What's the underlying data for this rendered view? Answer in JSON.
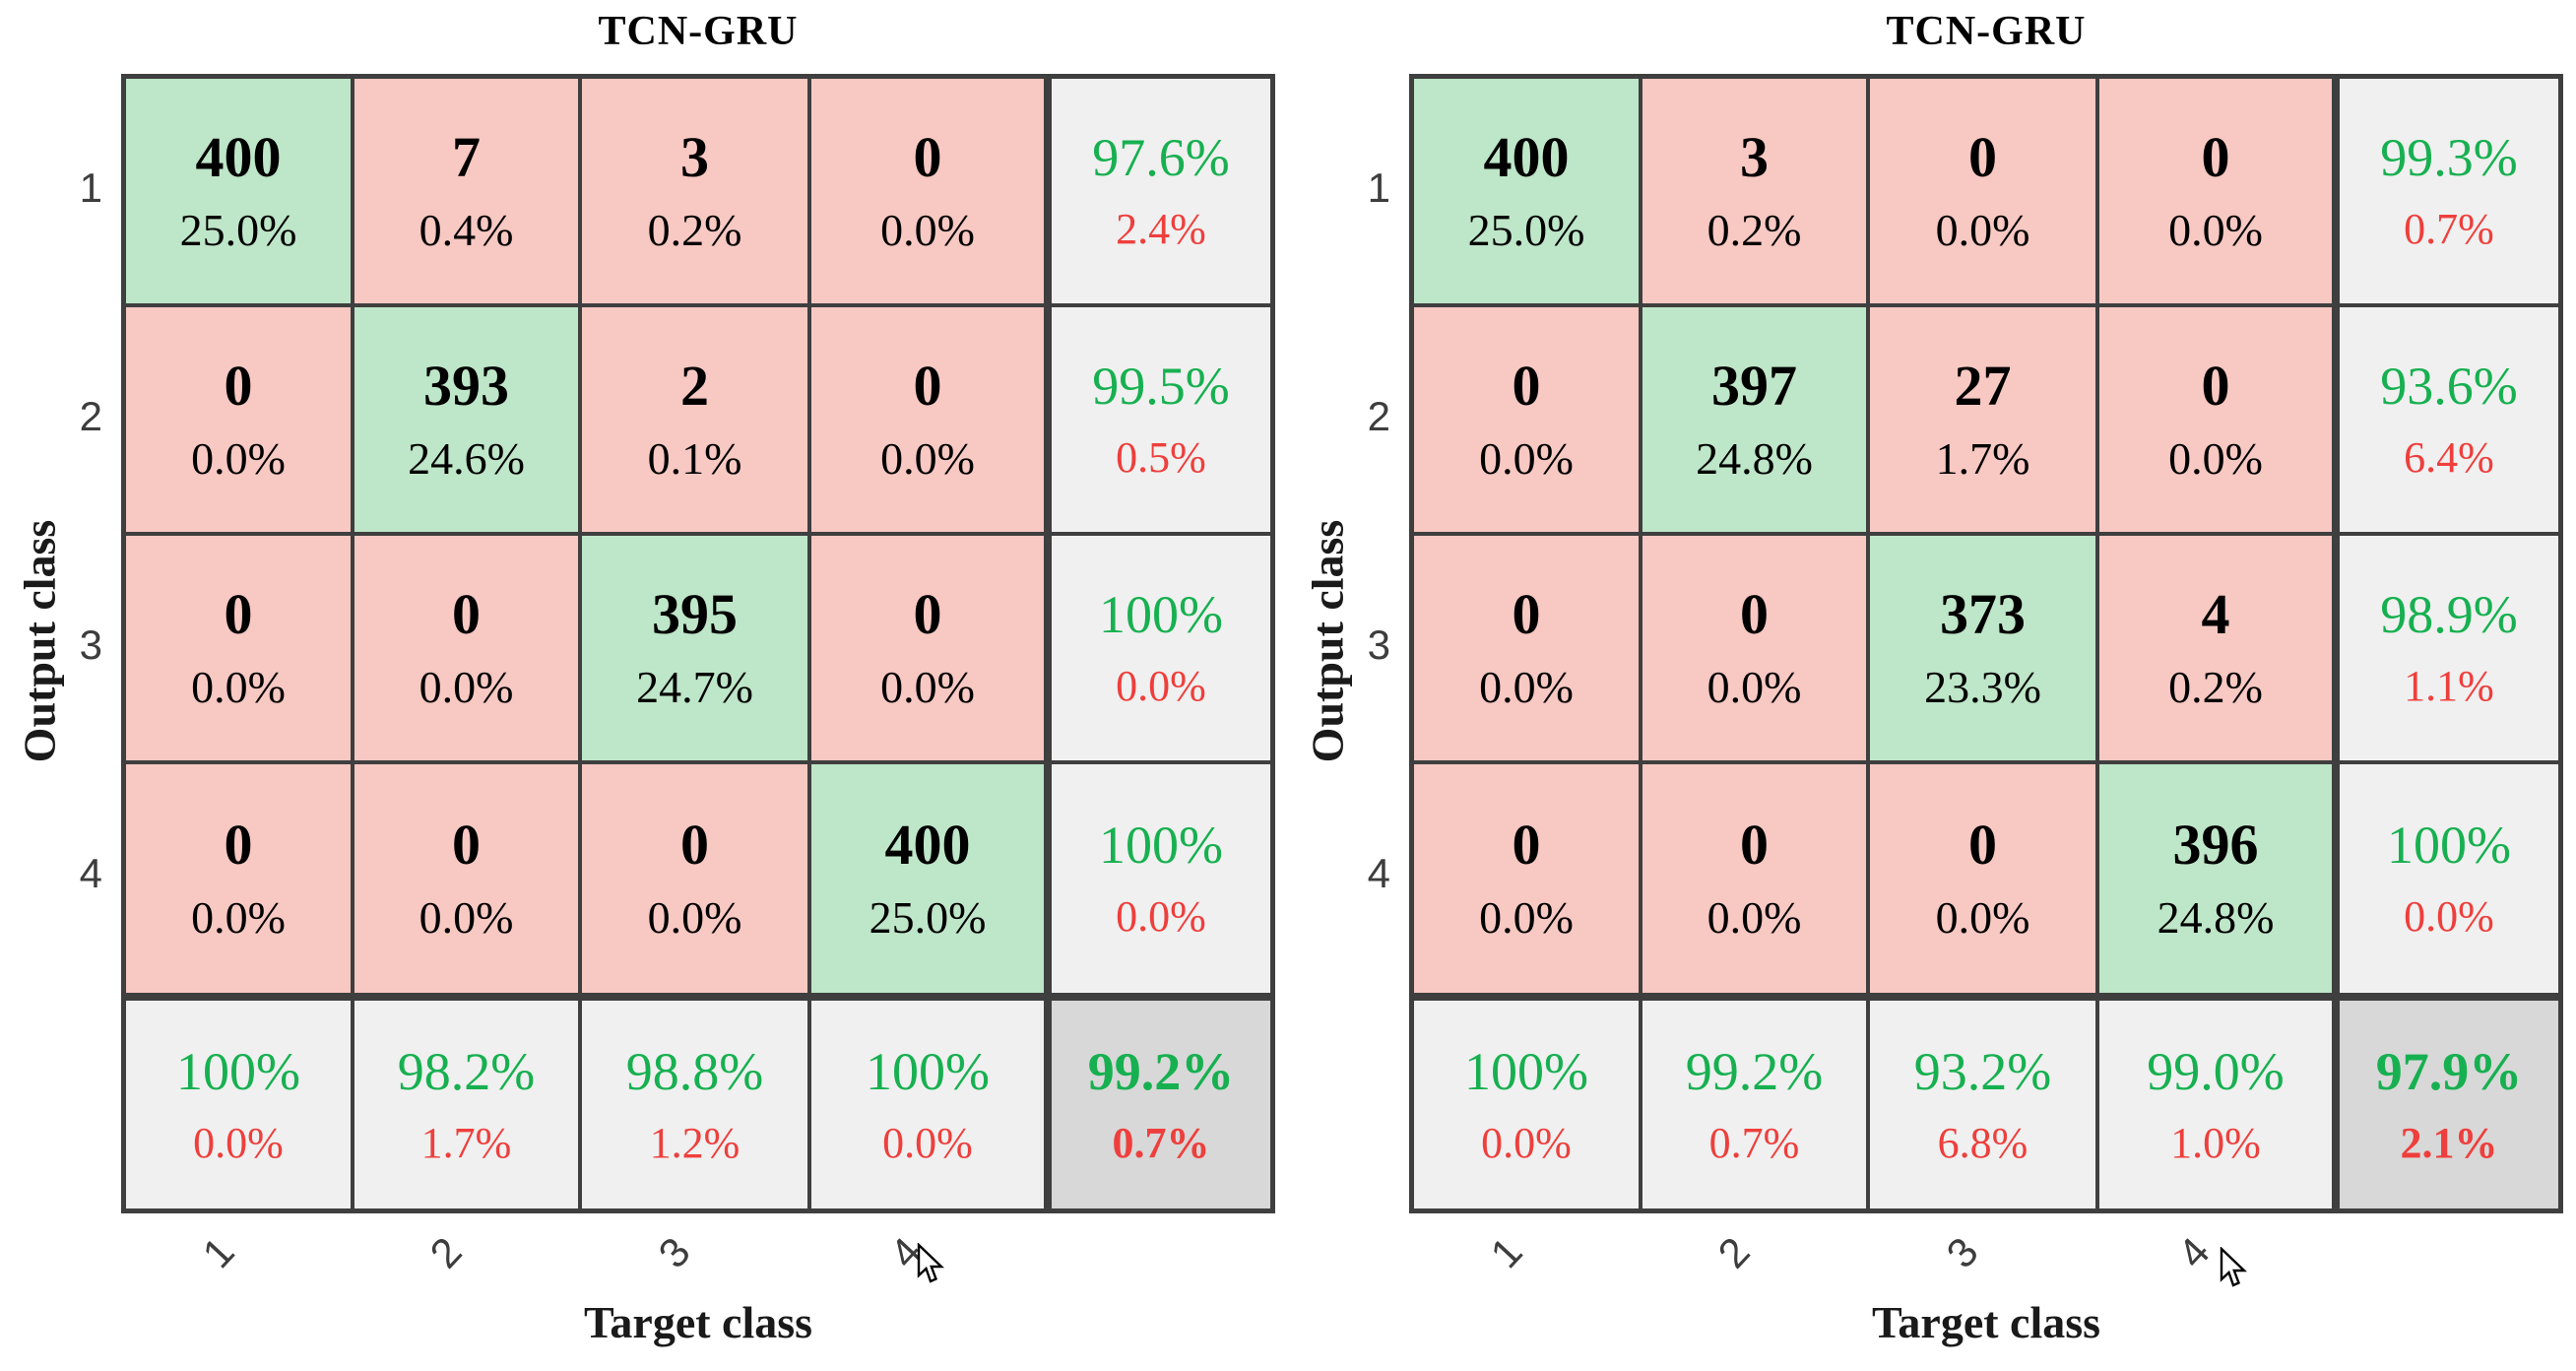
{
  "colors": {
    "border": "#3f3f3f",
    "diagonal_cell_green": "#bee6c8",
    "off_diagonal_pink": "#f8c8c2",
    "summary_cell_gray": "#f0f0f0",
    "overall_cell_gray": "#d8d8d8",
    "success_text_green": "#17b050",
    "error_text_red": "#ee3f3c",
    "tick_label_gray": "#3d3d3d"
  },
  "panels": [
    {
      "title": "TCN-GRU",
      "x_axis_label": "Target class",
      "y_axis_label": "Output class",
      "row_labels": [
        "1",
        "2",
        "3",
        "4"
      ],
      "col_labels": [
        "1",
        "2",
        "3",
        "4"
      ],
      "rows": [
        [
          {
            "count": "400",
            "pct": "25.0%"
          },
          {
            "count": "7",
            "pct": "0.4%"
          },
          {
            "count": "3",
            "pct": "0.2%"
          },
          {
            "count": "0",
            "pct": "0.0%"
          }
        ],
        [
          {
            "count": "0",
            "pct": "0.0%"
          },
          {
            "count": "393",
            "pct": "24.6%"
          },
          {
            "count": "2",
            "pct": "0.1%"
          },
          {
            "count": "0",
            "pct": "0.0%"
          }
        ],
        [
          {
            "count": "0",
            "pct": "0.0%"
          },
          {
            "count": "0",
            "pct": "0.0%"
          },
          {
            "count": "395",
            "pct": "24.7%"
          },
          {
            "count": "0",
            "pct": "0.0%"
          }
        ],
        [
          {
            "count": "0",
            "pct": "0.0%"
          },
          {
            "count": "0",
            "pct": "0.0%"
          },
          {
            "count": "0",
            "pct": "0.0%"
          },
          {
            "count": "400",
            "pct": "25.0%"
          }
        ]
      ],
      "row_summary": [
        {
          "green": "97.6%",
          "red": "2.4%"
        },
        {
          "green": "99.5%",
          "red": "0.5%"
        },
        {
          "green": "100%",
          "red": "0.0%"
        },
        {
          "green": "100%",
          "red": "0.0%"
        }
      ],
      "col_summary": [
        {
          "green": "100%",
          "red": "0.0%"
        },
        {
          "green": "98.2%",
          "red": "1.7%"
        },
        {
          "green": "98.8%",
          "red": "1.2%"
        },
        {
          "green": "100%",
          "red": "0.0%"
        }
      ],
      "overall": {
        "green": "99.2%",
        "red": "0.7%"
      }
    },
    {
      "title": "TCN-GRU",
      "x_axis_label": "Target class",
      "y_axis_label": "Output class",
      "row_labels": [
        "1",
        "2",
        "3",
        "4"
      ],
      "col_labels": [
        "1",
        "2",
        "3",
        "4"
      ],
      "rows": [
        [
          {
            "count": "400",
            "pct": "25.0%"
          },
          {
            "count": "3",
            "pct": "0.2%"
          },
          {
            "count": "0",
            "pct": "0.0%"
          },
          {
            "count": "0",
            "pct": "0.0%"
          }
        ],
        [
          {
            "count": "0",
            "pct": "0.0%"
          },
          {
            "count": "397",
            "pct": "24.8%"
          },
          {
            "count": "27",
            "pct": "1.7%"
          },
          {
            "count": "0",
            "pct": "0.0%"
          }
        ],
        [
          {
            "count": "0",
            "pct": "0.0%"
          },
          {
            "count": "0",
            "pct": "0.0%"
          },
          {
            "count": "373",
            "pct": "23.3%"
          },
          {
            "count": "4",
            "pct": "0.2%"
          }
        ],
        [
          {
            "count": "0",
            "pct": "0.0%"
          },
          {
            "count": "0",
            "pct": "0.0%"
          },
          {
            "count": "0",
            "pct": "0.0%"
          },
          {
            "count": "396",
            "pct": "24.8%"
          }
        ]
      ],
      "row_summary": [
        {
          "green": "99.3%",
          "red": "0.7%"
        },
        {
          "green": "93.6%",
          "red": "6.4%"
        },
        {
          "green": "98.9%",
          "red": "1.1%"
        },
        {
          "green": "100%",
          "red": "0.0%"
        }
      ],
      "col_summary": [
        {
          "green": "100%",
          "red": "0.0%"
        },
        {
          "green": "99.2%",
          "red": "0.7%"
        },
        {
          "green": "93.2%",
          "red": "6.8%"
        },
        {
          "green": "99.0%",
          "red": "1.0%"
        }
      ],
      "overall": {
        "green": "97.9%",
        "red": "2.1%"
      }
    }
  ],
  "chart_data": [
    {
      "type": "heatmap",
      "title": "TCN-GRU",
      "xlabel": "Target class",
      "ylabel": "Output class",
      "categories": [
        "1",
        "2",
        "3",
        "4"
      ],
      "matrix_counts": [
        [
          400,
          7,
          3,
          0
        ],
        [
          0,
          393,
          2,
          0
        ],
        [
          0,
          0,
          395,
          0
        ],
        [
          0,
          0,
          0,
          400
        ]
      ],
      "matrix_pct": [
        [
          25.0,
          0.4,
          0.2,
          0.0
        ],
        [
          0.0,
          24.6,
          0.1,
          0.0
        ],
        [
          0.0,
          0.0,
          24.7,
          0.0
        ],
        [
          0.0,
          0.0,
          0.0,
          25.0
        ]
      ],
      "row_precision_pct": [
        97.6,
        99.5,
        100,
        100
      ],
      "row_error_pct": [
        2.4,
        0.5,
        0.0,
        0.0
      ],
      "col_recall_pct": [
        100,
        98.2,
        98.8,
        100
      ],
      "col_error_pct": [
        0.0,
        1.7,
        1.2,
        0.0
      ],
      "overall_accuracy_pct": 99.2,
      "overall_error_pct": 0.7,
      "legend_position": "none",
      "grid": true
    },
    {
      "type": "heatmap",
      "title": "TCN-GRU",
      "xlabel": "Target class",
      "ylabel": "Output class",
      "categories": [
        "1",
        "2",
        "3",
        "4"
      ],
      "matrix_counts": [
        [
          400,
          3,
          0,
          0
        ],
        [
          0,
          397,
          27,
          0
        ],
        [
          0,
          0,
          373,
          4
        ],
        [
          0,
          0,
          0,
          396
        ]
      ],
      "matrix_pct": [
        [
          25.0,
          0.2,
          0.0,
          0.0
        ],
        [
          0.0,
          24.8,
          1.7,
          0.0
        ],
        [
          0.0,
          0.0,
          23.3,
          0.2
        ],
        [
          0.0,
          0.0,
          0.0,
          24.8
        ]
      ],
      "row_precision_pct": [
        99.3,
        93.6,
        98.9,
        100
      ],
      "row_error_pct": [
        0.7,
        6.4,
        1.1,
        0.0
      ],
      "col_recall_pct": [
        100,
        99.2,
        93.2,
        99.0
      ],
      "col_error_pct": [
        0.0,
        0.7,
        6.8,
        1.0
      ],
      "overall_accuracy_pct": 97.9,
      "overall_error_pct": 2.1,
      "legend_position": "none",
      "grid": true
    }
  ]
}
